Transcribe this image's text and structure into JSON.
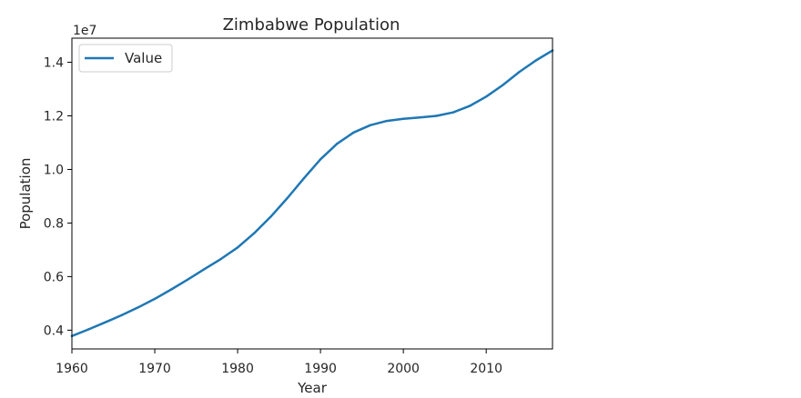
{
  "chart_data": {
    "type": "line",
    "title": "Zimbabwe Population",
    "xlabel": "Year",
    "ylabel": "Population",
    "y_offset_label": "1e7",
    "xlim": [
      1960,
      2018
    ],
    "ylim": [
      3.3,
      14.9
    ],
    "y_scale_factor": 10000000,
    "x_ticks": [
      1960,
      1970,
      1980,
      1990,
      2000,
      2010
    ],
    "x_tick_labels": [
      "1960",
      "1970",
      "1980",
      "1990",
      "2000",
      "2010"
    ],
    "y_ticks": [
      4,
      6,
      8,
      10,
      12,
      14
    ],
    "y_tick_labels": [
      "0.4",
      "0.6",
      "0.8",
      "1.0",
      "1.2",
      "1.4"
    ],
    "grid": false,
    "legend_position": "upper-left",
    "series": [
      {
        "name": "Value",
        "color": "#1f77b4",
        "x": [
          1960,
          1962,
          1964,
          1966,
          1968,
          1970,
          1972,
          1974,
          1976,
          1978,
          1980,
          1982,
          1984,
          1986,
          1988,
          1990,
          1992,
          1994,
          1996,
          1998,
          2000,
          2002,
          2004,
          2006,
          2008,
          2010,
          2012,
          2014,
          2016,
          2018
        ],
        "values": [
          3.78,
          4.03,
          4.29,
          4.56,
          4.85,
          5.17,
          5.52,
          5.89,
          6.28,
          6.66,
          7.09,
          7.62,
          8.24,
          8.93,
          9.67,
          10.38,
          10.96,
          11.38,
          11.65,
          11.81,
          11.89,
          11.94,
          12.0,
          12.13,
          12.37,
          12.72,
          13.15,
          13.64,
          14.07,
          14.44
        ]
      }
    ]
  }
}
